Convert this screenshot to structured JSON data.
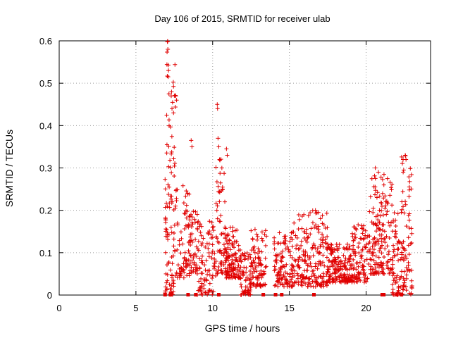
{
  "chart_data": {
    "type": "scatter",
    "title": "Day 106 of 2015, SRMTID for receiver ulab",
    "xlabel": "GPS time / hours",
    "ylabel": "SRMTID / TECUs",
    "xlim": [
      0,
      24.2
    ],
    "ylim": [
      0,
      0.6
    ],
    "xticks": [
      0,
      5,
      10,
      15,
      20
    ],
    "yticks": [
      0,
      0.1,
      0.2,
      0.3,
      0.4,
      0.5,
      0.6
    ],
    "xtick_labels": [
      "0",
      "5",
      "10",
      "15",
      "20"
    ],
    "ytick_labels": [
      "0",
      "0.1",
      "0.2",
      "0.3",
      "0.4",
      "0.5",
      "0.6"
    ],
    "grid": true,
    "marker": "plus",
    "color": "#e00000",
    "clusters": [
      {
        "x_start": 6.9,
        "x_end": 7.5,
        "y_low": 0.0,
        "y_high": 0.3,
        "count": 70
      },
      {
        "x_start": 7.0,
        "x_end": 7.6,
        "y_low": 0.3,
        "y_high": 0.6,
        "count": 30
      },
      {
        "x_start": 7.5,
        "x_end": 8.5,
        "y_low": 0.04,
        "y_high": 0.28,
        "count": 80
      },
      {
        "x_start": 8.5,
        "x_end": 9.0,
        "y_low": 0.05,
        "y_high": 0.2,
        "count": 45
      },
      {
        "x_start": 9.0,
        "x_end": 10.2,
        "y_low": 0.0,
        "y_high": 0.18,
        "count": 95
      },
      {
        "x_start": 10.2,
        "x_end": 10.8,
        "y_low": 0.05,
        "y_high": 0.34,
        "count": 60
      },
      {
        "x_start": 10.8,
        "x_end": 11.8,
        "y_low": 0.04,
        "y_high": 0.16,
        "count": 120
      },
      {
        "x_start": 11.8,
        "x_end": 12.5,
        "y_low": 0.0,
        "y_high": 0.1,
        "count": 70
      },
      {
        "x_start": 12.5,
        "x_end": 13.5,
        "y_low": 0.02,
        "y_high": 0.16,
        "count": 90
      },
      {
        "x_start": 14.0,
        "x_end": 15.5,
        "y_low": 0.02,
        "y_high": 0.15,
        "count": 130
      },
      {
        "x_start": 15.5,
        "x_end": 17.5,
        "y_low": 0.02,
        "y_high": 0.2,
        "count": 190
      },
      {
        "x_start": 17.5,
        "x_end": 19.0,
        "y_low": 0.03,
        "y_high": 0.12,
        "count": 160
      },
      {
        "x_start": 19.0,
        "x_end": 20.2,
        "y_low": 0.03,
        "y_high": 0.17,
        "count": 110
      },
      {
        "x_start": 20.2,
        "x_end": 21.7,
        "y_low": 0.05,
        "y_high": 0.29,
        "count": 160
      },
      {
        "x_start": 21.7,
        "x_end": 22.3,
        "y_low": 0.0,
        "y_high": 0.2,
        "count": 60
      },
      {
        "x_start": 22.3,
        "x_end": 23.0,
        "y_low": 0.0,
        "y_high": 0.33,
        "count": 80
      }
    ],
    "highlights": [
      {
        "x": 7.05,
        "y": 0.598
      },
      {
        "x": 7.08,
        "y": 0.58
      },
      {
        "x": 7.12,
        "y": 0.53
      },
      {
        "x": 7.1,
        "y": 0.515
      },
      {
        "x": 7.15,
        "y": 0.475
      },
      {
        "x": 7.3,
        "y": 0.47
      },
      {
        "x": 7.35,
        "y": 0.44
      },
      {
        "x": 7.6,
        "y": 0.47
      },
      {
        "x": 7.65,
        "y": 0.46
      },
      {
        "x": 7.45,
        "y": 0.43
      },
      {
        "x": 10.3,
        "y": 0.45
      },
      {
        "x": 10.32,
        "y": 0.44
      },
      {
        "x": 10.35,
        "y": 0.37
      },
      {
        "x": 10.4,
        "y": 0.35
      },
      {
        "x": 10.45,
        "y": 0.32
      },
      {
        "x": 10.6,
        "y": 0.3
      },
      {
        "x": 10.9,
        "y": 0.345
      },
      {
        "x": 10.95,
        "y": 0.33
      },
      {
        "x": 8.6,
        "y": 0.365
      },
      {
        "x": 8.65,
        "y": 0.35
      },
      {
        "x": 22.55,
        "y": 0.33
      },
      {
        "x": 22.6,
        "y": 0.32
      },
      {
        "x": 20.6,
        "y": 0.3
      },
      {
        "x": 20.8,
        "y": 0.29
      },
      {
        "x": 16.7,
        "y": 0.2
      },
      {
        "x": 15.3,
        "y": 0.17
      }
    ],
    "zero_markers": [
      6.9,
      7.25,
      7.3,
      8.4,
      8.9,
      10.4,
      13.3,
      14.1,
      14.5,
      16.6,
      21.05,
      21.15,
      22.0,
      22.3
    ]
  }
}
